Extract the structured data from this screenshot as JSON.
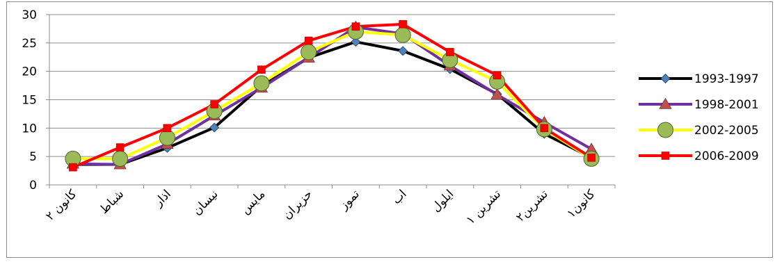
{
  "chart_data": {
    "type": "line",
    "title": "",
    "xlabel": "",
    "ylabel": "",
    "ylim": [
      0,
      30
    ],
    "yticks": [
      0,
      5,
      10,
      15,
      20,
      25,
      30
    ],
    "grid": "horizontal",
    "legend_position": "right",
    "categories": [
      "كانون ٢",
      "شباط",
      "اذار",
      "نيسان",
      "مايس",
      "حزيران",
      "تموز",
      "اب",
      "ايلول",
      "تشرين ١",
      "تشرين٢",
      "كانون١"
    ],
    "series": [
      {
        "name": "1993-1997",
        "line_color": "#000000",
        "marker": "diamond",
        "marker_color": "#4f81bd",
        "values": [
          3.6,
          3.6,
          6.5,
          10.1,
          17.4,
          22.4,
          25.2,
          23.6,
          20.4,
          16.0,
          9.0,
          4.8
        ]
      },
      {
        "name": "1998-2001",
        "line_color": "#7030a0",
        "marker": "triangle",
        "marker_color": "#c0504d",
        "values": [
          3.7,
          3.6,
          7.2,
          12.2,
          17.1,
          22.4,
          27.8,
          26.6,
          21.0,
          15.9,
          11.0,
          6.3
        ]
      },
      {
        "name": "2002-2005",
        "line_color": "#ffff00",
        "marker": "circle",
        "marker_color": "#9bbb59",
        "values": [
          4.6,
          4.6,
          8.3,
          13.0,
          17.9,
          23.4,
          27.0,
          26.4,
          22.0,
          18.2,
          9.8,
          4.6
        ]
      },
      {
        "name": "2006-2009",
        "line_color": "#ff0000",
        "marker": "square",
        "marker_color": "#ff0000",
        "values": [
          3.1,
          6.6,
          10.0,
          14.2,
          20.3,
          25.4,
          27.9,
          28.3,
          23.4,
          19.3,
          10.0,
          4.8
        ]
      }
    ]
  }
}
